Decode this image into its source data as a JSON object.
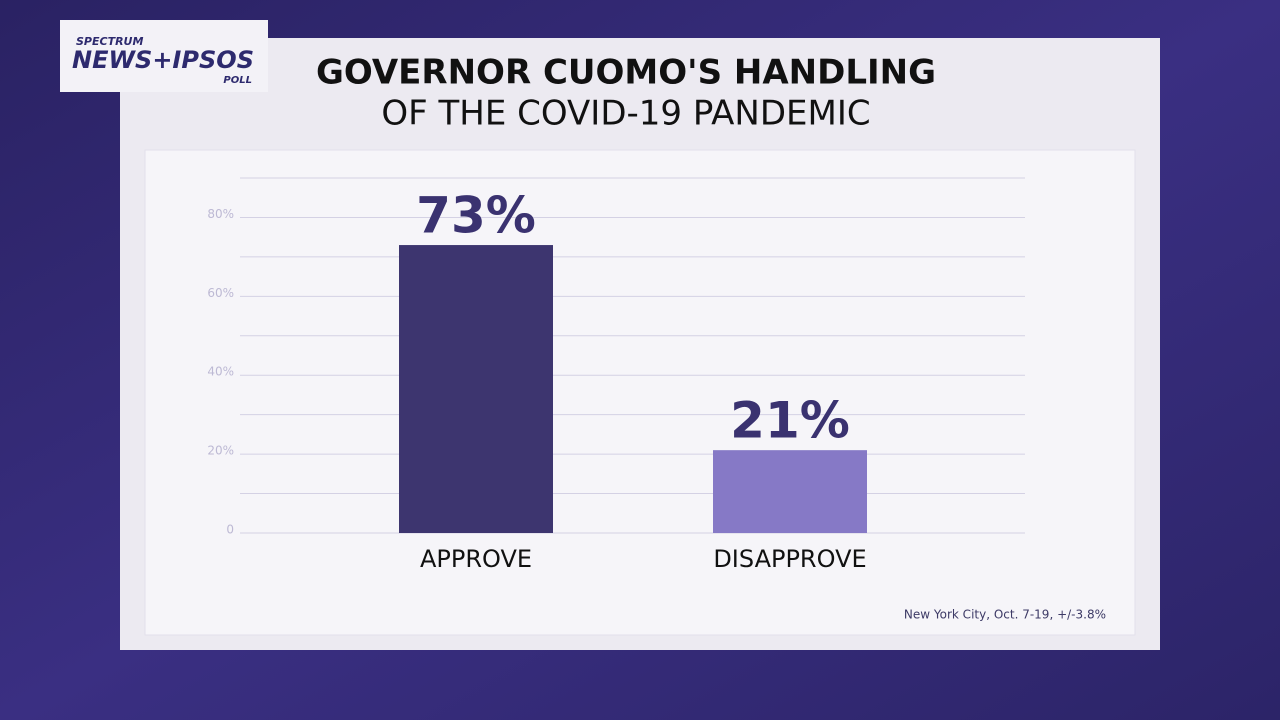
{
  "logo": {
    "top": "SPECTRUM",
    "main": "NEWS+IPSOS",
    "bottom": "POLL"
  },
  "chart_data": {
    "type": "bar",
    "title": "GOVERNOR CUOMO'S HANDLING",
    "subtitle": "OF THE COVID-19 PANDEMIC",
    "categories": [
      "APPROVE",
      "DISAPPROVE"
    ],
    "values": [
      73,
      21
    ],
    "value_labels": [
      "73%",
      "21%"
    ],
    "colors": [
      "#3d356f",
      "#8679c6"
    ],
    "ylim": [
      0,
      90
    ],
    "yticks": [
      0,
      {
        "value": 20,
        "label": "20%"
      },
      {
        "value": 40,
        "label": "40%"
      },
      {
        "value": 60,
        "label": "60%"
      },
      {
        "value": 80,
        "label": "80%"
      }
    ],
    "minor_yticks": [
      10,
      30,
      50,
      70,
      90
    ],
    "grid": true,
    "note": "New York City, Oct. 7-19, +/-3.8%"
  }
}
